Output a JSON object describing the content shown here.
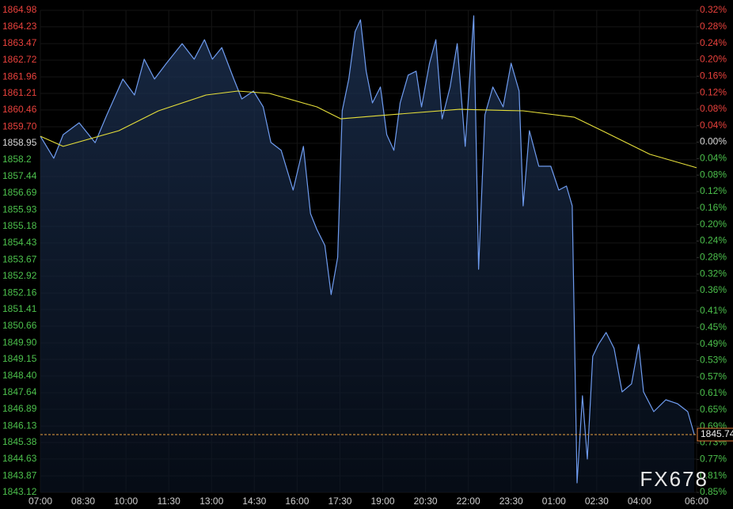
{
  "chart_data": {
    "type": "line",
    "watermark": "FX678",
    "current_price": 1845.74,
    "up_color": "#e8413c",
    "down_color": "#4cc04c",
    "flat_color": "#d8d8d8",
    "grid": true,
    "xlim": [
      7,
      30
    ],
    "xticks": [
      {
        "value": 7,
        "label": "07:00"
      },
      {
        "value": 8.5,
        "label": "08:30"
      },
      {
        "value": 10,
        "label": "10:00"
      },
      {
        "value": 11.5,
        "label": "11:30"
      },
      {
        "value": 13,
        "label": "13:00"
      },
      {
        "value": 14.5,
        "label": "14:30"
      },
      {
        "value": 16,
        "label": "16:00"
      },
      {
        "value": 17.5,
        "label": "17:30"
      },
      {
        "value": 19,
        "label": "19:00"
      },
      {
        "value": 20.5,
        "label": "20:30"
      },
      {
        "value": 22,
        "label": "22:00"
      },
      {
        "value": 23.5,
        "label": "23:30"
      },
      {
        "value": 25,
        "label": "01:00"
      },
      {
        "value": 26.5,
        "label": "02:30"
      },
      {
        "value": 28,
        "label": "04:00"
      },
      {
        "value": 30,
        "label": "06:00"
      }
    ],
    "ylim": [
      1843.12,
      1864.98
    ],
    "yticks": [
      1864.98,
      1864.23,
      1863.47,
      1862.72,
      1861.96,
      1861.21,
      1860.46,
      {
        "value": 1859.7,
        "label": "1859.70"
      },
      1858.95,
      1858.2,
      1857.44,
      1856.69,
      1855.93,
      1855.18,
      1854.43,
      1853.67,
      1852.92,
      1852.16,
      1851.41,
      1850.66,
      {
        "value": 1849.9,
        "label": "1849.90"
      },
      1849.15,
      {
        "value": 1848.4,
        "label": "1848.40"
      },
      1847.64,
      1846.89,
      1846.13,
      1845.38,
      1844.63,
      1843.87,
      1843.12
    ],
    "y2lim": [
      -0.85,
      0.32
    ],
    "y2ticks": [
      {
        "value": 0.32,
        "label": "0.32%"
      },
      {
        "value": 0.28,
        "label": "0.28%"
      },
      {
        "value": 0.24,
        "label": "0.24%"
      },
      {
        "value": 0.2,
        "label": "0.20%"
      },
      {
        "value": 0.16,
        "label": "0.16%"
      },
      {
        "value": 0.12,
        "label": "0.12%"
      },
      {
        "value": 0.08,
        "label": "0.08%"
      },
      {
        "value": 0.04,
        "label": "0.04%"
      },
      {
        "value": 0,
        "label": "0.00%"
      },
      {
        "value": -0.04,
        "label": "0.04%"
      },
      {
        "value": -0.08,
        "label": "0.08%"
      },
      {
        "value": -0.12,
        "label": "0.12%"
      },
      {
        "value": -0.16,
        "label": "0.16%"
      },
      {
        "value": -0.2,
        "label": "0.20%"
      },
      {
        "value": -0.24,
        "label": "0.24%"
      },
      {
        "value": -0.28,
        "label": "0.28%"
      },
      {
        "value": -0.32,
        "label": "0.32%"
      },
      {
        "value": -0.36,
        "label": "0.36%"
      },
      {
        "value": -0.41,
        "label": "0.41%"
      },
      {
        "value": -0.45,
        "label": "0.45%"
      },
      {
        "value": -0.49,
        "label": "0.49%"
      },
      {
        "value": -0.53,
        "label": "0.53%"
      },
      {
        "value": -0.57,
        "label": "0.57%"
      },
      {
        "value": -0.61,
        "label": "0.61%"
      },
      {
        "value": -0.65,
        "label": "0.65%"
      },
      {
        "value": -0.69,
        "label": "0.69%"
      },
      {
        "value": -0.73,
        "label": "0.73%"
      },
      {
        "value": -0.77,
        "label": "0.77%"
      },
      {
        "value": -0.81,
        "label": "0.81%"
      },
      {
        "value": -0.85,
        "label": "0.85%"
      }
    ],
    "series": [
      {
        "color": "#6f9cf0",
        "area": true,
        "x": [
          7.0,
          7.47,
          7.8,
          8.36,
          8.92,
          9.33,
          9.89,
          10.3,
          10.64,
          11.0,
          11.42,
          11.97,
          12.39,
          12.75,
          13.03,
          13.36,
          13.78,
          14.06,
          14.47,
          14.81,
          15.08,
          15.44,
          15.86,
          16.22,
          16.47,
          16.69,
          16.97,
          17.19,
          17.42,
          17.58,
          17.81,
          18.03,
          18.22,
          18.42,
          18.64,
          18.92,
          19.14,
          19.39,
          19.61,
          19.89,
          20.17,
          20.36,
          20.64,
          20.86,
          21.08,
          21.36,
          21.61,
          21.89,
          22.19,
          22.36,
          22.58,
          22.86,
          23.22,
          23.5,
          23.78,
          23.92,
          24.14,
          24.47,
          24.89,
          25.17,
          25.44,
          25.64,
          25.72,
          25.81,
          26.0,
          26.17,
          26.36,
          26.56,
          26.83,
          27.11,
          27.39,
          27.72,
          27.97,
          28.14,
          28.5,
          28.92,
          29.33,
          29.69,
          29.92
        ],
        "values": [
          1859.27,
          1858.27,
          1859.34,
          1859.88,
          1858.98,
          1860.24,
          1861.86,
          1861.14,
          1862.76,
          1861.86,
          1862.58,
          1863.47,
          1862.76,
          1863.65,
          1862.76,
          1863.29,
          1861.86,
          1860.96,
          1861.32,
          1860.6,
          1858.99,
          1858.63,
          1856.83,
          1858.81,
          1855.76,
          1855.04,
          1854.32,
          1852.09,
          1853.78,
          1860.42,
          1861.86,
          1864.01,
          1864.55,
          1862.22,
          1860.78,
          1861.5,
          1859.34,
          1858.63,
          1860.78,
          1862.04,
          1862.22,
          1860.6,
          1862.58,
          1863.65,
          1860.06,
          1861.5,
          1863.47,
          1858.81,
          1864.73,
          1853.24,
          1860.24,
          1861.5,
          1860.6,
          1862.58,
          1861.32,
          1856.11,
          1859.52,
          1857.91,
          1857.91,
          1856.83,
          1857.01,
          1856.11,
          1850.37,
          1843.55,
          1847.5,
          1844.63,
          1849.29,
          1849.83,
          1850.37,
          1849.65,
          1847.68,
          1848.04,
          1849.83,
          1847.68,
          1846.78,
          1847.32,
          1847.14,
          1846.78,
          1845.74
        ]
      },
      {
        "color": "#e6df3a",
        "x": [
          7.0,
          7.8,
          9.75,
          11.14,
          12.81,
          13.92,
          15.03,
          16.69,
          17.53,
          18.92,
          21.69,
          23.92,
          25.72,
          26.69,
          28.36,
          30.0
        ],
        "values": [
          1859.27,
          1858.81,
          1859.52,
          1860.42,
          1861.14,
          1861.32,
          1861.21,
          1860.6,
          1860.06,
          1860.21,
          1860.49,
          1860.42,
          1860.13,
          1859.52,
          1858.45,
          1857.84
        ]
      }
    ]
  }
}
